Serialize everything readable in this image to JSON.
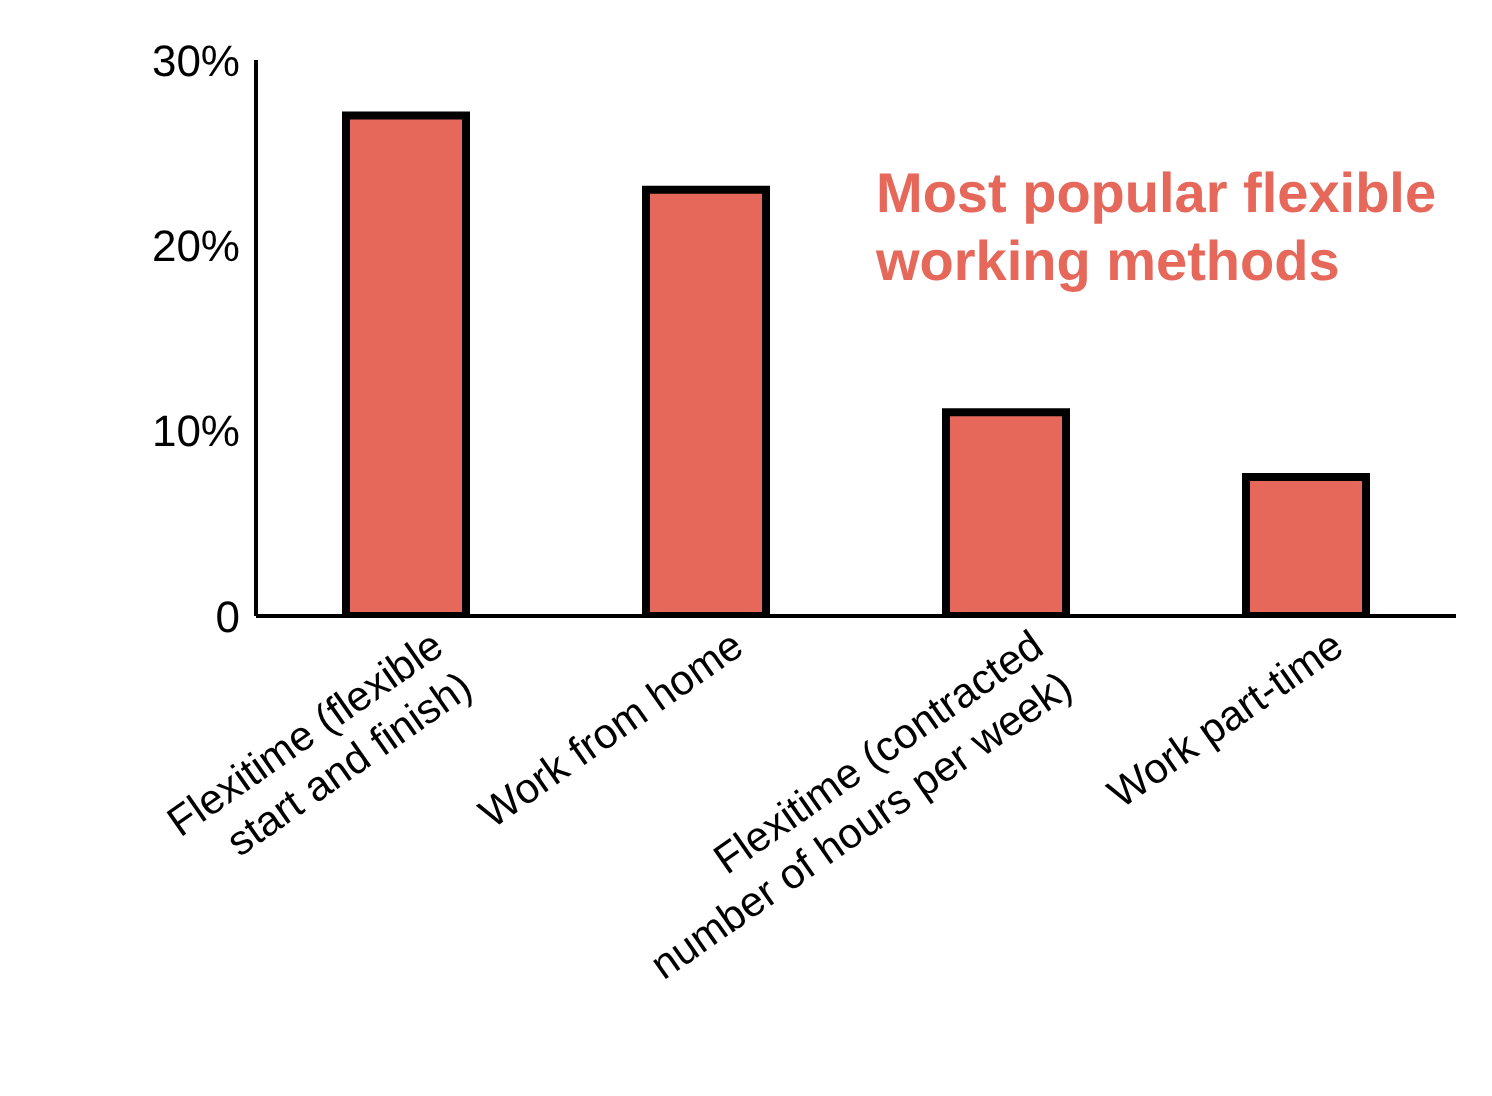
{
  "chart_data": {
    "type": "bar",
    "title": "Most popular flexible working methods",
    "categories": [
      "Flexitime (flexible start and finish)",
      "Work from home",
      "Flexitime (contracted number of hours per week)",
      "Work part-time"
    ],
    "values": [
      27,
      23,
      11,
      7.5
    ],
    "color": "#e5685a",
    "ylim": [
      0,
      30
    ],
    "yticks": [
      {
        "value": 0,
        "label": "0"
      },
      {
        "value": 10,
        "label": "10%"
      },
      {
        "value": 20,
        "label": "20%"
      },
      {
        "value": 30,
        "label": "30%"
      }
    ],
    "grid": false,
    "legend": false
  }
}
